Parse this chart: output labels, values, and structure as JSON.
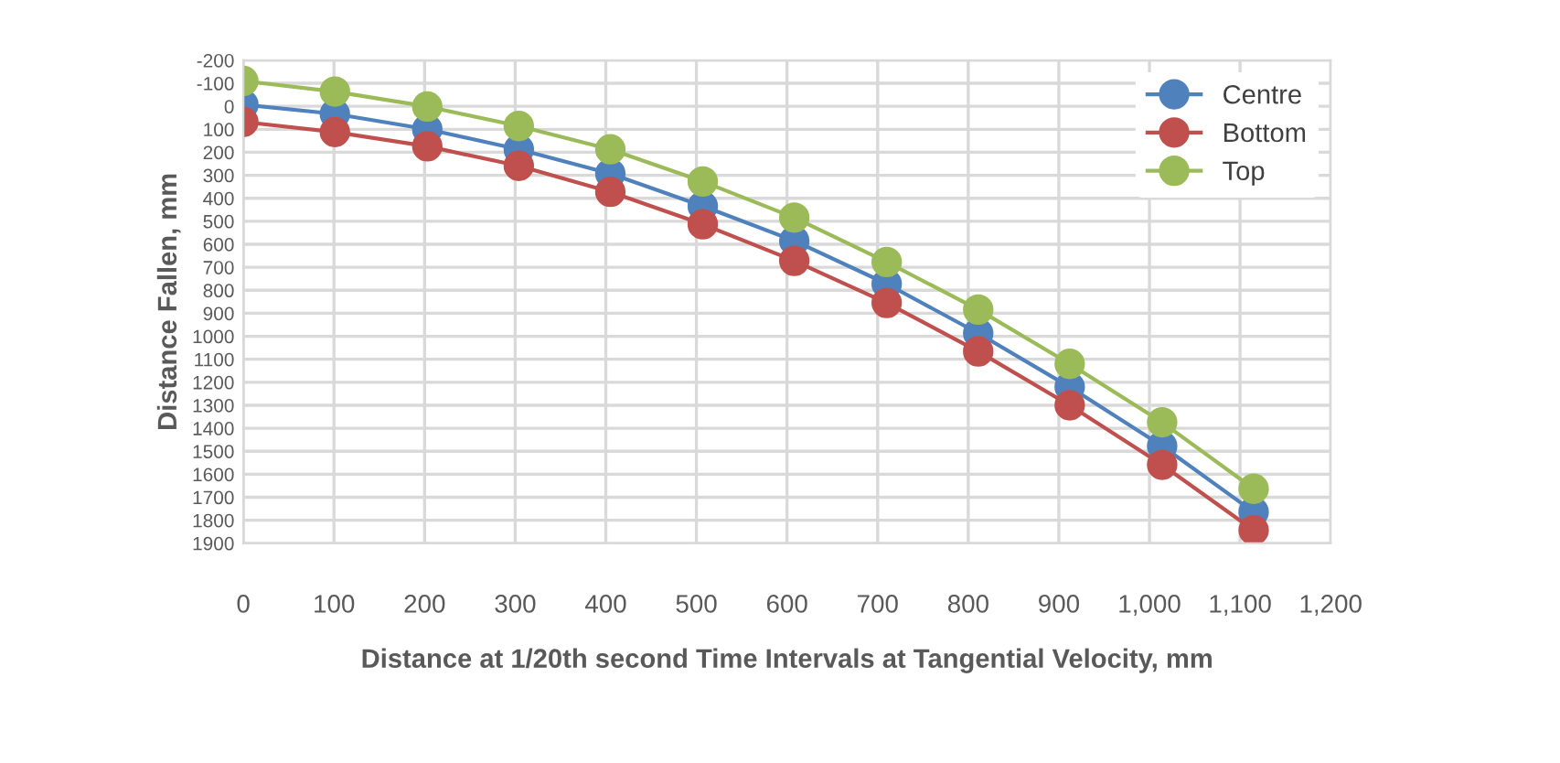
{
  "chart_data": {
    "type": "line",
    "xlabel": "Distance at 1/20th second Time Intervals at Tangential Velocity, mm",
    "ylabel": "Distance Fallen, mm",
    "series": [
      {
        "name": "Centre",
        "color": "#4f81bd",
        "x": [
          0,
          101,
          203,
          304,
          405,
          507,
          608,
          710,
          811,
          912,
          1014,
          1115
        ],
        "values": [
          -7,
          33,
          100,
          187,
          293,
          434,
          585,
          772,
          987,
          1221,
          1477,
          1764
        ]
      },
      {
        "name": "Bottom",
        "color": "#c0504d",
        "x": [
          0,
          101,
          203,
          304,
          405,
          507,
          608,
          710,
          811,
          912,
          1014,
          1115
        ],
        "values": [
          68,
          112,
          174,
          259,
          372,
          513,
          672,
          855,
          1066,
          1300,
          1559,
          1843
        ]
      },
      {
        "name": "Top",
        "color": "#9bbb59",
        "x": [
          0,
          101,
          203,
          304,
          405,
          507,
          608,
          710,
          811,
          912,
          1014,
          1115
        ],
        "values": [
          -110,
          -64,
          1,
          86,
          187,
          327,
          484,
          677,
          884,
          1120,
          1374,
          1663
        ]
      }
    ],
    "xlim": [
      0,
      1200
    ],
    "xticks": [
      0,
      100,
      200,
      300,
      400,
      500,
      600,
      700,
      800,
      900,
      {
        "value": 1000,
        "label": "1,000"
      },
      {
        "value": 1100,
        "label": "1,100"
      },
      {
        "value": 1200,
        "label": "1,200"
      }
    ],
    "ylim": [
      1900,
      -200
    ],
    "yticks": [
      -200,
      -100,
      0,
      100,
      200,
      300,
      400,
      500,
      600,
      700,
      800,
      900,
      1000,
      1100,
      1200,
      1300,
      1400,
      1500,
      1600,
      1700,
      1800,
      1900
    ],
    "grid": true,
    "legend": "top right",
    "marker": "circle",
    "line_style": "solid"
  }
}
